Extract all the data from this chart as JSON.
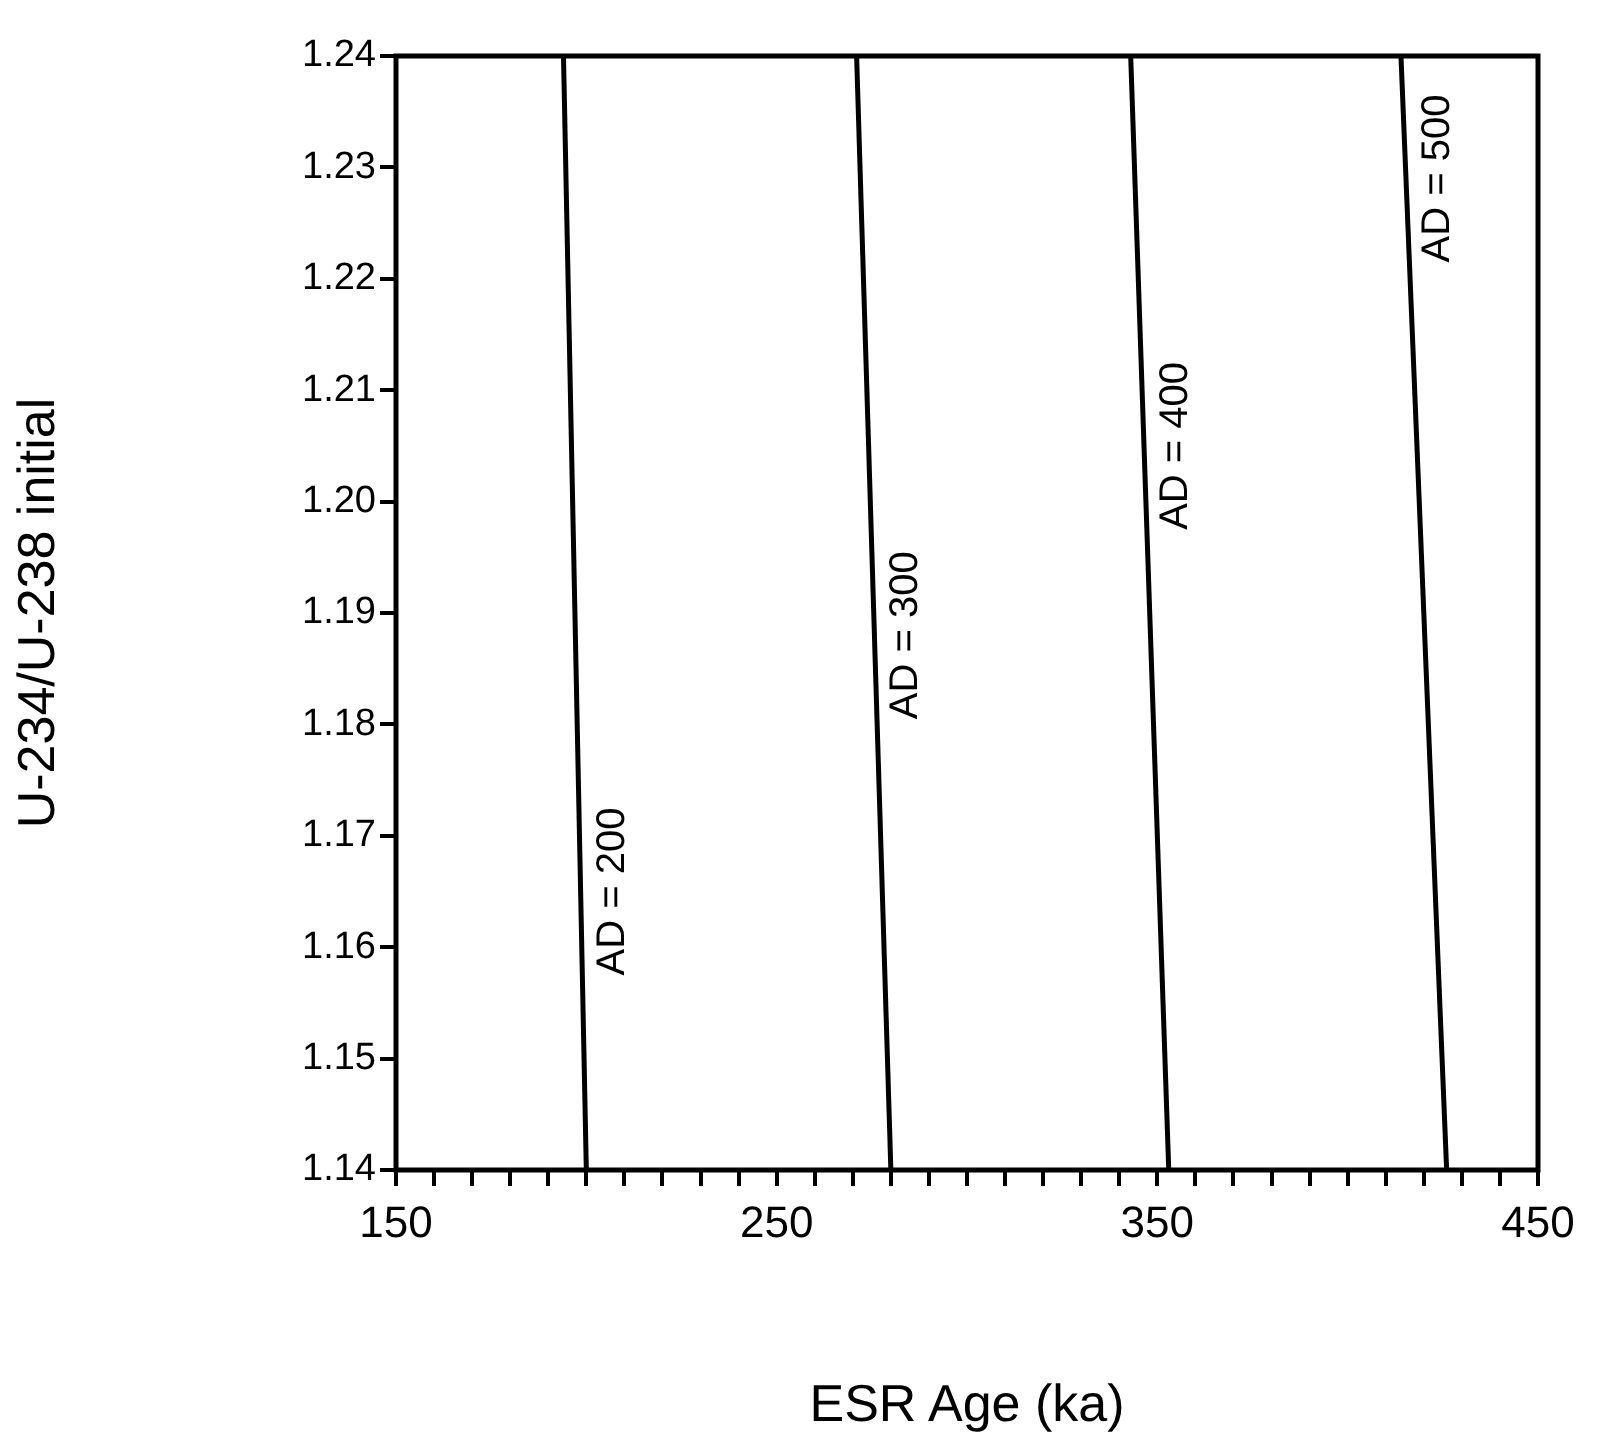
{
  "chart_data": {
    "type": "line",
    "xlabel": "ESR Age (ka)",
    "ylabel": "U-234/U-238 initial",
    "xlim": [
      150,
      450
    ],
    "xticks": [
      150,
      {
        "value": 160,
        "label": null
      },
      {
        "value": 170,
        "label": null
      },
      {
        "value": 180,
        "label": null
      },
      {
        "value": 190,
        "label": null
      },
      {
        "value": 200,
        "label": null
      },
      {
        "value": 210,
        "label": null
      },
      {
        "value": 220,
        "label": null
      },
      {
        "value": 230,
        "label": null
      },
      {
        "value": 240,
        "label": null
      },
      250,
      {
        "value": 260,
        "label": null
      },
      {
        "value": 270,
        "label": null
      },
      {
        "value": 280,
        "label": null
      },
      {
        "value": 290,
        "label": null
      },
      {
        "value": 300,
        "label": null
      },
      {
        "value": 310,
        "label": null
      },
      {
        "value": 320,
        "label": null
      },
      {
        "value": 330,
        "label": null
      },
      {
        "value": 340,
        "label": null
      },
      350,
      {
        "value": 360,
        "label": null
      },
      {
        "value": 370,
        "label": null
      },
      {
        "value": 380,
        "label": null
      },
      {
        "value": 390,
        "label": null
      },
      {
        "value": 400,
        "label": null
      },
      {
        "value": 410,
        "label": null
      },
      {
        "value": 420,
        "label": null
      },
      {
        "value": 430,
        "label": null
      },
      {
        "value": 440,
        "label": null
      },
      450
    ],
    "ylim": [
      1.14,
      1.24
    ],
    "yticks": [
      {
        "value": 1.14,
        "label": "1.14"
      },
      {
        "value": 1.15,
        "label": "1.15"
      },
      {
        "value": 1.16,
        "label": "1.16"
      },
      {
        "value": 1.17,
        "label": "1.17"
      },
      {
        "value": 1.18,
        "label": "1.18"
      },
      {
        "value": 1.19,
        "label": "1.19"
      },
      {
        "value": 1.2,
        "label": "1.20"
      },
      {
        "value": 1.21,
        "label": "1.21"
      },
      {
        "value": 1.22,
        "label": "1.22"
      },
      {
        "value": 1.23,
        "label": "1.23"
      },
      {
        "value": 1.24,
        "label": "1.24"
      }
    ],
    "grid": false,
    "legend": false,
    "marker": "none",
    "line_style": "solid",
    "series": [
      {
        "name": "AD = 200",
        "color": "#000000",
        "x": [
          200,
          194
        ],
        "values": [
          1.14,
          1.24
        ]
      },
      {
        "name": "AD = 300",
        "color": "#000000",
        "x": [
          280,
          271
        ],
        "values": [
          1.14,
          1.24
        ]
      },
      {
        "name": "AD = 400",
        "color": "#000000",
        "x": [
          353,
          343
        ],
        "values": [
          1.14,
          1.24
        ]
      },
      {
        "name": "AD = 500",
        "color": "#000000",
        "x": [
          426,
          414
        ],
        "values": [
          1.14,
          1.24
        ]
      }
    ]
  }
}
